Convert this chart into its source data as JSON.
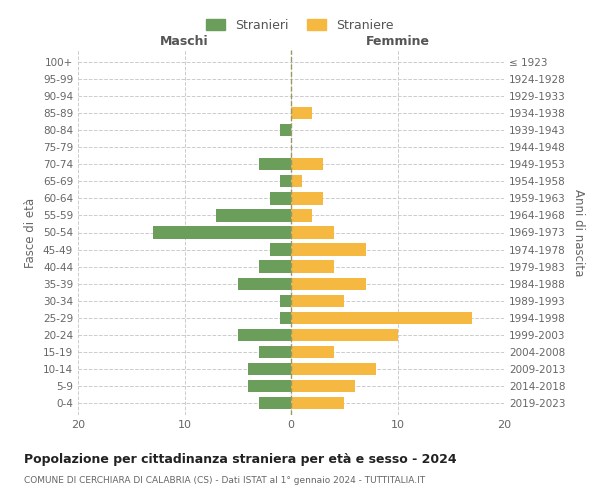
{
  "age_groups": [
    "0-4",
    "5-9",
    "10-14",
    "15-19",
    "20-24",
    "25-29",
    "30-34",
    "35-39",
    "40-44",
    "45-49",
    "50-54",
    "55-59",
    "60-64",
    "65-69",
    "70-74",
    "75-79",
    "80-84",
    "85-89",
    "90-94",
    "95-99",
    "100+"
  ],
  "birth_years": [
    "2019-2023",
    "2014-2018",
    "2009-2013",
    "2004-2008",
    "1999-2003",
    "1994-1998",
    "1989-1993",
    "1984-1988",
    "1979-1983",
    "1974-1978",
    "1969-1973",
    "1964-1968",
    "1959-1963",
    "1954-1958",
    "1949-1953",
    "1944-1948",
    "1939-1943",
    "1934-1938",
    "1929-1933",
    "1924-1928",
    "≤ 1923"
  ],
  "stranieri": [
    3,
    4,
    4,
    3,
    5,
    1,
    1,
    5,
    3,
    2,
    13,
    7,
    2,
    1,
    3,
    0,
    1,
    0,
    0,
    0,
    0
  ],
  "straniere": [
    5,
    6,
    8,
    4,
    10,
    17,
    5,
    7,
    4,
    7,
    4,
    2,
    3,
    1,
    3,
    0,
    0,
    2,
    0,
    0,
    0
  ],
  "male_color": "#6a9e5a",
  "female_color": "#f5b942",
  "title": "Popolazione per cittadinanza straniera per età e sesso - 2024",
  "subtitle": "COMUNE DI CERCHIARA DI CALABRIA (CS) - Dati ISTAT al 1° gennaio 2024 - TUTTITALIA.IT",
  "xlabel_left": "Maschi",
  "xlabel_right": "Femmine",
  "ylabel_left": "Fasce di età",
  "ylabel_right": "Anni di nascita",
  "legend_stranieri": "Stranieri",
  "legend_straniere": "Straniere",
  "xlim": 20,
  "background_color": "#ffffff",
  "grid_color": "#cccccc"
}
